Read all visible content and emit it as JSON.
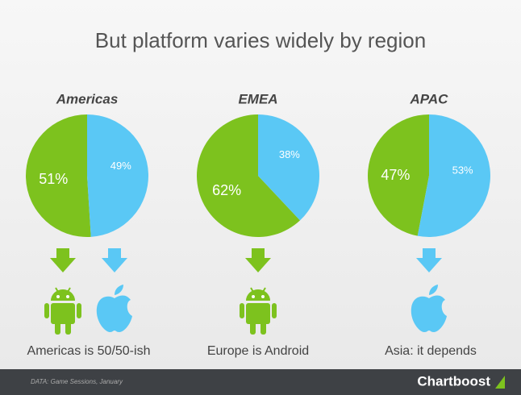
{
  "title": "But platform varies widely by region",
  "chart_data": [
    {
      "type": "pie",
      "title": "Americas",
      "values": [
        51,
        49
      ],
      "value_labels": [
        "51%",
        "49%"
      ],
      "colors": [
        "#7dc21e",
        "#5ac8f5"
      ]
    },
    {
      "type": "pie",
      "title": "EMEA",
      "values": [
        62,
        38
      ],
      "value_labels": [
        "62%",
        "38%"
      ],
      "colors": [
        "#7dc21e",
        "#5ac8f5"
      ]
    },
    {
      "type": "pie",
      "title": "APAC",
      "values": [
        47,
        53
      ],
      "value_labels": [
        "47%",
        "53%"
      ],
      "colors": [
        "#7dc21e",
        "#5ac8f5"
      ]
    }
  ],
  "captions": [
    "Americas is 50/50-ish",
    "Europe is Android",
    "Asia: it depends"
  ],
  "footer": {
    "source": "DATA: Game Sessions, January",
    "brand": "Chartboost"
  }
}
